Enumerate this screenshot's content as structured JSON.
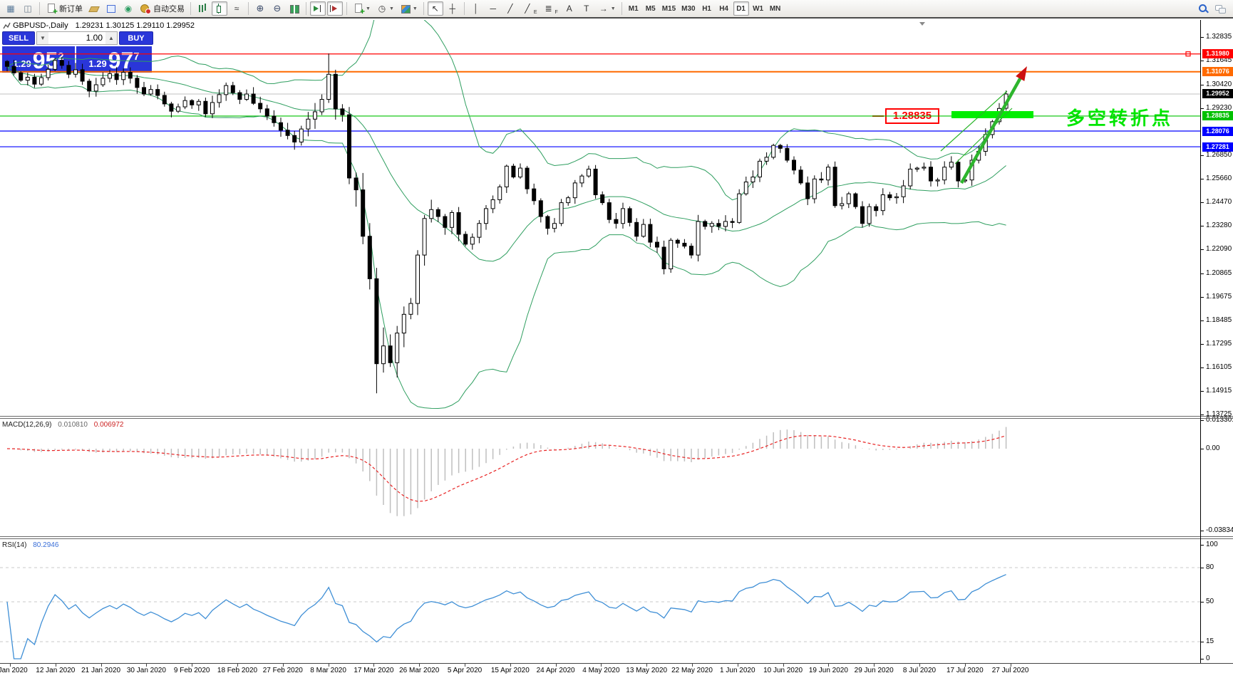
{
  "header": {
    "symbol_period": "GBPUSD-,Daily",
    "ohlc": "1.29231 1.30125 1.29110 1.29952"
  },
  "toolbar": {
    "groups": [
      [
        {
          "name": "new-chart-button",
          "icon": "new-chart-icon"
        },
        {
          "name": "chart-preview-button",
          "icon": "preview-icon"
        }
      ],
      [
        {
          "name": "new-order-button",
          "icon": "doc-plus-icon",
          "label": "新订单"
        },
        {
          "name": "eraser-button",
          "icon": "eraser-icon"
        },
        {
          "name": "data-window-button",
          "icon": "data-window-icon"
        },
        {
          "name": "signal-button",
          "icon": "signal-icon"
        },
        {
          "name": "autotrading-button",
          "icon": "autotrading-icon",
          "label": "自动交易"
        }
      ],
      [
        {
          "name": "bar-chart-mode-button",
          "icon": "bars-icon"
        },
        {
          "name": "candlestick-mode-button",
          "icon": "candle-icon",
          "pressed": true
        },
        {
          "name": "line-chart-mode-button",
          "icon": "linechart-icon"
        }
      ],
      [
        {
          "name": "zoom-in-button",
          "icon": "zoom-in-icon"
        },
        {
          "name": "zoom-out-button",
          "icon": "zoom-out-icon"
        },
        {
          "name": "tile-windows-button",
          "icon": "tile-icon"
        }
      ],
      [
        {
          "name": "auto-scroll-button",
          "icon": "autoscroll-icon",
          "pressed": true
        },
        {
          "name": "chart-shift-button",
          "icon": "chart-shift-icon",
          "pressed": true
        }
      ],
      [
        {
          "name": "indicators-button",
          "icon": "doc-plus-icon",
          "dropdown": true
        },
        {
          "name": "periods-button",
          "icon": "periods-icon",
          "dropdown": true
        },
        {
          "name": "templates-button",
          "icon": "templates-icon",
          "dropdown": true
        }
      ],
      [
        {
          "name": "cursor-button",
          "icon": "cursor-icon",
          "pressed": true
        },
        {
          "name": "crosshair-button",
          "icon": "crosshair-icon"
        }
      ],
      [
        {
          "name": "vline-button",
          "icon": "vline-icon"
        },
        {
          "name": "hline-button",
          "icon": "hline-icon"
        },
        {
          "name": "trendline-button",
          "icon": "trendline-icon"
        },
        {
          "name": "channel-button",
          "icon": "channel-icon",
          "sub": "E"
        },
        {
          "name": "fibonacci-button",
          "icon": "fibonacci-icon",
          "sub": "F"
        },
        {
          "name": "text-button",
          "icon": "text-icon"
        },
        {
          "name": "label-button",
          "icon": "label-icon"
        },
        {
          "name": "arrows-button",
          "icon": "arrows-icon",
          "dropdown": true
        }
      ],
      [
        {
          "name": "timeframe-m1-button",
          "label": "M1",
          "tf": true
        },
        {
          "name": "timeframe-m5-button",
          "label": "M5",
          "tf": true
        },
        {
          "name": "timeframe-m15-button",
          "label": "M15",
          "tf": true
        },
        {
          "name": "timeframe-m30-button",
          "label": "M30",
          "tf": true
        },
        {
          "name": "timeframe-h1-button",
          "label": "H1",
          "tf": true
        },
        {
          "name": "timeframe-h4-button",
          "label": "H4",
          "tf": true
        },
        {
          "name": "timeframe-d1-button",
          "label": "D1",
          "tf": true,
          "pressed": true
        },
        {
          "name": "timeframe-w1-button",
          "label": "W1",
          "tf": true
        },
        {
          "name": "timeframe-mn-button",
          "label": "MN",
          "tf": true
        }
      ]
    ],
    "right": [
      {
        "name": "search-icon",
        "icon": "search-icon"
      },
      {
        "name": "community-icon",
        "icon": "chat-icon"
      }
    ]
  },
  "trade_panel": {
    "sell_label": "SELL",
    "buy_label": "BUY",
    "volume": "1.00",
    "sell_price_prefix": "1.29",
    "sell_price_big": "95",
    "sell_price_sup": "2",
    "buy_price_prefix": "1.29",
    "buy_price_big": "97",
    "buy_price_sup": "7"
  },
  "macd_panel": {
    "label": "MACD(12,26,9)",
    "value_main": "0.010810",
    "value_signal": "0.006972",
    "axis_labels": [
      "0.013301",
      "0.00",
      "-0.038343"
    ]
  },
  "rsi_panel": {
    "label": "RSI(14)",
    "value": "80.2946"
  },
  "annotations": {
    "callout_text": "1.28835",
    "cn_text": "多空转折点"
  },
  "chart_data": [
    {
      "type": "candlestick",
      "symbol": "GBPUSD-",
      "timeframe": "Daily",
      "title_ohlc": {
        "open": 1.29231,
        "high": 1.30125,
        "low": 1.2911,
        "close": 1.29952
      },
      "ylim": [
        1.13725,
        1.32835
      ],
      "price_ticks": [
        1.32835,
        1.31645,
        1.3042,
        1.2923,
        1.2685,
        1.2566,
        1.2447,
        1.2328,
        1.2209,
        1.20865,
        1.19675,
        1.18485,
        1.17295,
        1.16105,
        1.14915,
        1.13725
      ],
      "x_labels": [
        "3 Jan 2020",
        "12 Jan 2020",
        "21 Jan 2020",
        "30 Jan 2020",
        "9 Feb 2020",
        "18 Feb 2020",
        "27 Feb 2020",
        "8 Mar 2020",
        "17 Mar 2020",
        "26 Mar 2020",
        "5 Apr 2020",
        "15 Apr 2020",
        "24 Apr 2020",
        "4 May 2020",
        "13 May 2020",
        "22 May 2020",
        "1 Jun 2020",
        "10 Jun 2020",
        "19 Jun 2020",
        "29 Jun 2020",
        "8 Jul 2020",
        "17 Jul 2020",
        "27 Jul 2020"
      ],
      "first_open": 1.316,
      "closes": [
        1.3135,
        1.3102,
        1.3065,
        1.308,
        1.3045,
        1.3078,
        1.312,
        1.3165,
        1.314,
        1.3095,
        1.3118,
        1.306,
        1.301,
        1.3042,
        1.3075,
        1.3098,
        1.3068,
        1.3105,
        1.3075,
        1.3028,
        1.2995,
        1.3018,
        1.2988,
        1.2945,
        1.2908,
        1.293,
        1.2962,
        1.294,
        1.2958,
        1.2895,
        1.2952,
        1.2992,
        1.3038,
        1.3002,
        1.2968,
        1.2995,
        1.2948,
        1.292,
        1.2883,
        1.285,
        1.2812,
        1.2785,
        1.2752,
        1.2818,
        1.2868,
        1.2905,
        1.2968,
        1.3095,
        1.292,
        1.289,
        1.257,
        1.251,
        1.2275,
        1.206,
        1.163,
        1.172,
        1.1635,
        1.1785,
        1.188,
        1.1935,
        1.218,
        1.2365,
        1.241,
        1.2375,
        1.232,
        1.2395,
        1.2285,
        1.2235,
        1.227,
        1.234,
        1.2415,
        1.246,
        1.2525,
        1.263,
        1.2575,
        1.262,
        1.2515,
        1.2455,
        1.2375,
        1.2315,
        1.234,
        1.2445,
        1.247,
        1.2545,
        1.258,
        1.2615,
        1.2485,
        1.2445,
        1.236,
        1.234,
        1.2415,
        1.2345,
        1.2275,
        1.2335,
        1.2245,
        1.222,
        1.211,
        1.2255,
        1.224,
        1.2225,
        1.218,
        1.235,
        1.2325,
        1.234,
        1.2325,
        1.235,
        1.2345,
        1.249,
        1.255,
        1.2575,
        1.2655,
        1.2675,
        1.2735,
        1.272,
        1.266,
        1.261,
        1.2545,
        1.2465,
        1.2565,
        1.256,
        1.2625,
        1.243,
        1.244,
        1.249,
        1.2425,
        1.234,
        1.2425,
        1.2405,
        1.2485,
        1.247,
        1.2475,
        1.253,
        1.2615,
        1.262,
        1.2625,
        1.2555,
        1.256,
        1.2625,
        1.265,
        1.2555,
        1.256,
        1.266,
        1.2705,
        1.279,
        1.2855,
        1.2922,
        1.29952
      ],
      "special_candles": {
        "47": {
          "h": 1.32,
          "l": 1.295
        },
        "54": {
          "l": 1.148
        },
        "55": {
          "l": 1.1585
        },
        "57": {
          "l": 1.156
        },
        "146": {
          "o": 1.29231,
          "h": 1.30125,
          "l": 1.2911
        }
      },
      "overlays": {
        "bollinger": {
          "period": 20,
          "deviation": 2
        }
      },
      "level_lines": [
        {
          "price": 1.3198,
          "label": "1.31980",
          "color": "#ff0000",
          "width": 1.3,
          "handle": true
        },
        {
          "price": 1.31076,
          "label": "1.31076",
          "color": "#ff6a00",
          "width": 2
        },
        {
          "price": 1.29952,
          "label": "1.29952",
          "color": "#c0c0c0",
          "width": 1,
          "label_bg": "#000000"
        },
        {
          "price": 1.28835,
          "label": "1.28835",
          "color": "#00c000",
          "width": 1.2
        },
        {
          "price": 1.28076,
          "label": "1.28076",
          "color": "#0000ff",
          "width": 1.2
        },
        {
          "price": 1.27281,
          "label": "1.27281",
          "color": "#0000ff",
          "width": 1.2
        }
      ]
    },
    {
      "type": "bar",
      "name": "MACD(12,26,9)",
      "params": {
        "fast": 12,
        "slow": 26,
        "signal": 9
      },
      "current_main": 0.01081,
      "current_signal": 0.006972,
      "ylim": [
        -0.038343,
        0.013301
      ],
      "y_ticks": [
        0.013301,
        0,
        -0.038343
      ]
    },
    {
      "type": "line",
      "name": "RSI(14)",
      "params": {
        "period": 14
      },
      "current": 80.2946,
      "ylim": [
        0,
        100
      ],
      "y_ticks": [
        100,
        80,
        50,
        15,
        0
      ],
      "dashed_levels": [
        80,
        50,
        15
      ]
    }
  ],
  "colors": {
    "bull": "#ffffff",
    "bear": "#000000",
    "candle_stroke": "#000000",
    "bollinger": "#2e9e5f",
    "macd_hist": "#bfbfbf",
    "macd_signal": "#e82222",
    "rsi": "#3f8fd6",
    "annotation_green": "#00ee00",
    "arrow_shaft": "#2db52d",
    "arrow_head": "#cc1111",
    "trade_blue": "#2a36d9"
  }
}
